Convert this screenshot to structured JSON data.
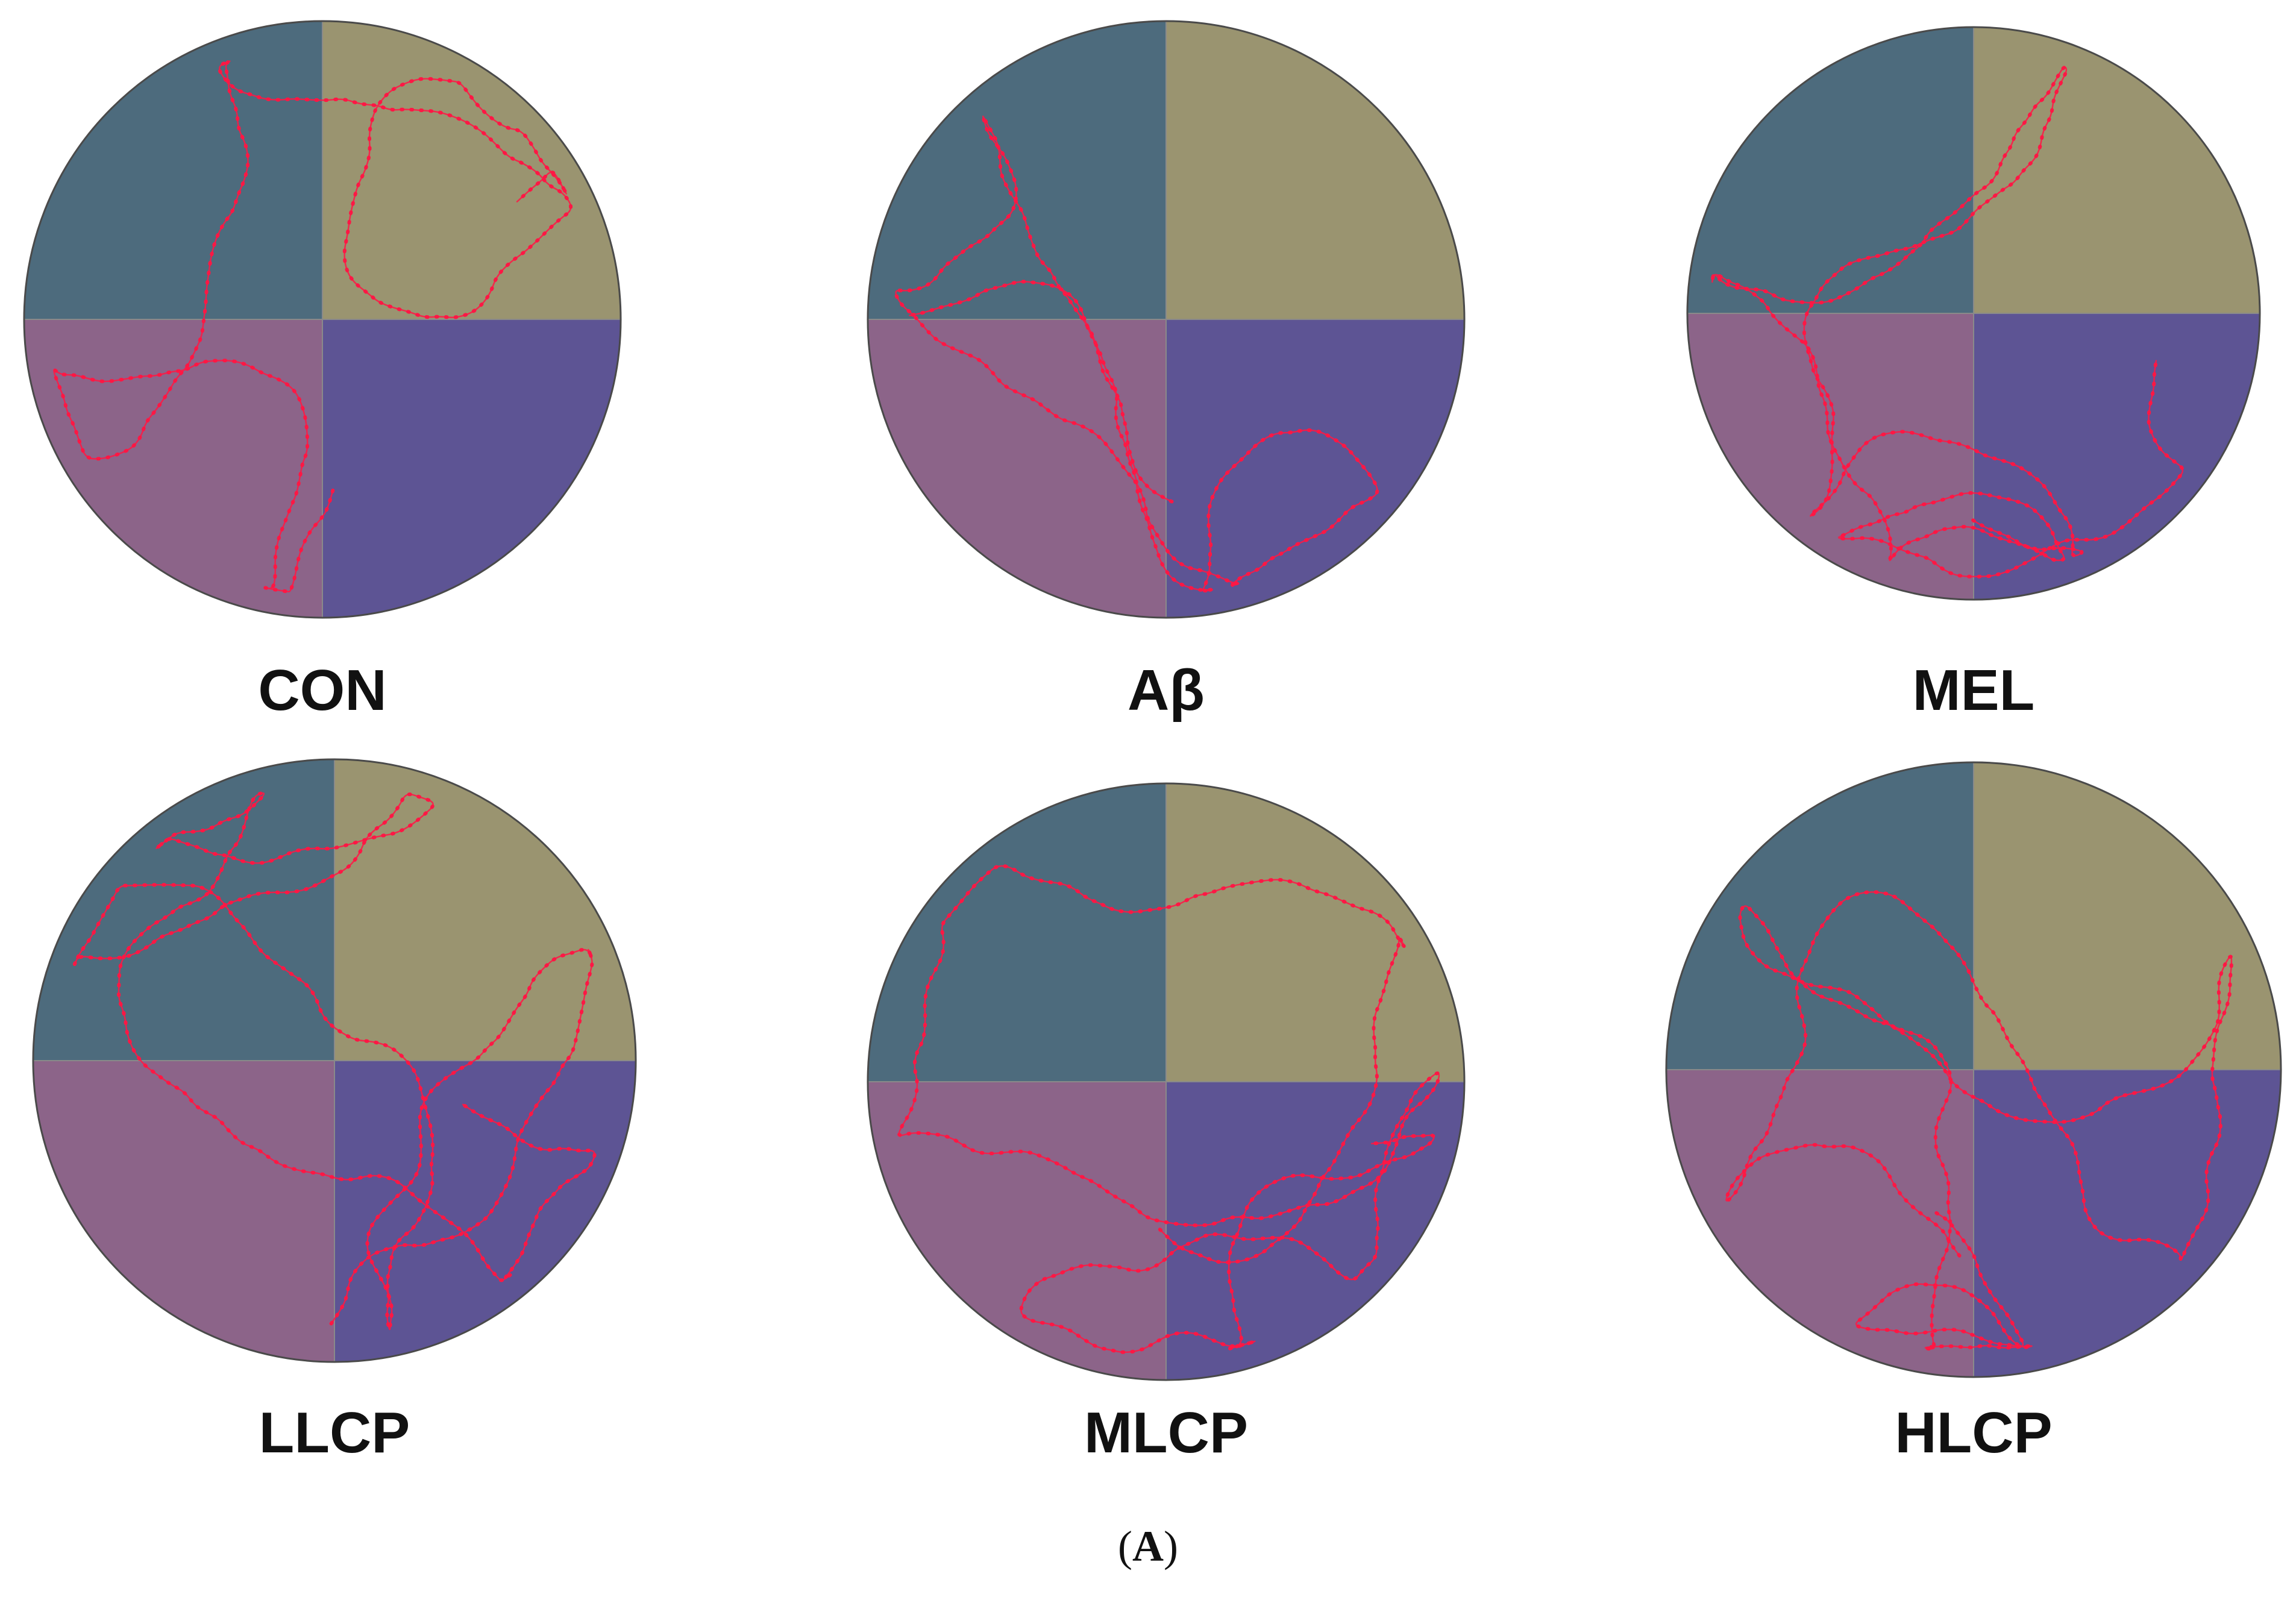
{
  "figure": {
    "caption_open": "(",
    "caption_letter": "A",
    "caption_close": ")"
  },
  "colors": {
    "quadrant_top_left": "#4d6b7d",
    "quadrant_top_right": "#9a9470",
    "quadrant_bottom_left": "#8c6489",
    "quadrant_bottom_right": "#5d5494",
    "track": "#ff1744",
    "label": "#111111"
  },
  "panels": [
    {
      "id": "con",
      "label": "CON"
    },
    {
      "id": "abeta",
      "label": "Aβ"
    },
    {
      "id": "mel",
      "label": "MEL"
    },
    {
      "id": "llcp",
      "label": "LLCP"
    },
    {
      "id": "mlcp",
      "label": "MLCP"
    },
    {
      "id": "hlcp",
      "label": "HLCP"
    }
  ]
}
